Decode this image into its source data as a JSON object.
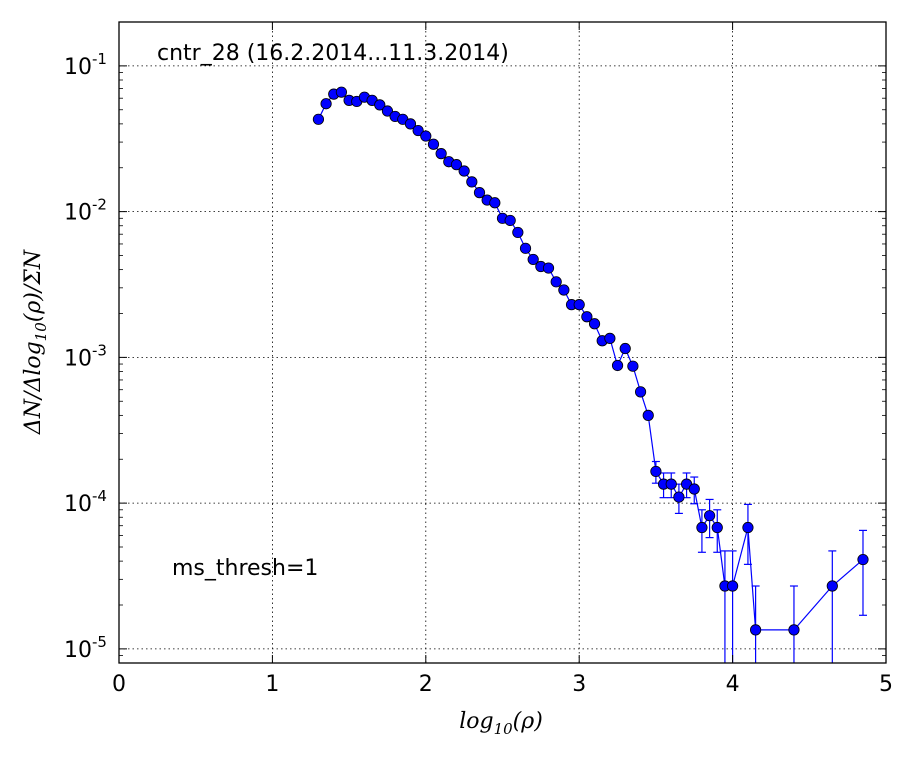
{
  "chart_data": {
    "type": "scatter",
    "title": "",
    "xlabel": "log10(ρ)",
    "ylabel": "ΔN/Δlog10(ρ)/ΣN",
    "xlim": [
      0,
      5
    ],
    "ylim": [
      8e-06,
      0.2
    ],
    "yscale": "log",
    "grid": true,
    "grid_style": "dotted",
    "x_ticks": [
      0,
      1,
      2,
      3,
      4,
      5
    ],
    "x_tick_labels": [
      "0",
      "1",
      "2",
      "3",
      "4",
      "5"
    ],
    "y_ticks": [
      1e-05,
      0.0001,
      0.001,
      0.01,
      0.1
    ],
    "y_tick_labels": [
      {
        "base": "10",
        "exp": "-5"
      },
      {
        "base": "10",
        "exp": "-4"
      },
      {
        "base": "10",
        "exp": "-3"
      },
      {
        "base": "10",
        "exp": "-2"
      },
      {
        "base": "10",
        "exp": "-1"
      }
    ],
    "annotations": [
      {
        "text": "cntr_28 (16.2.2014...11.3.2014)",
        "position": "top-left"
      },
      {
        "text": "ms_thresh=1",
        "position": "lower-left"
      }
    ],
    "series": [
      {
        "color": "#0000ff",
        "marker": "circle",
        "x": [
          1.3,
          1.35,
          1.4,
          1.45,
          1.5,
          1.55,
          1.6,
          1.65,
          1.7,
          1.75,
          1.8,
          1.85,
          1.9,
          1.95,
          2.0,
          2.05,
          2.1,
          2.15,
          2.2,
          2.25,
          2.3,
          2.35,
          2.4,
          2.45,
          2.5,
          2.55,
          2.6,
          2.65,
          2.7,
          2.75,
          2.8,
          2.85,
          2.9,
          2.95,
          3.0,
          3.05,
          3.1,
          3.15,
          3.2,
          3.25,
          3.3,
          3.35,
          3.4,
          3.45,
          3.5,
          3.55,
          3.6,
          3.65,
          3.7,
          3.75,
          3.8,
          3.85,
          3.9,
          3.95,
          4.0,
          4.1,
          4.15,
          4.4,
          4.65,
          4.85
        ],
        "y": [
          0.043,
          0.055,
          0.064,
          0.066,
          0.058,
          0.057,
          0.061,
          0.058,
          0.054,
          0.049,
          0.045,
          0.043,
          0.04,
          0.036,
          0.033,
          0.029,
          0.025,
          0.022,
          0.021,
          0.019,
          0.016,
          0.0135,
          0.012,
          0.0115,
          0.009,
          0.0087,
          0.0072,
          0.0056,
          0.0047,
          0.0042,
          0.0041,
          0.0033,
          0.0029,
          0.0023,
          0.0023,
          0.0019,
          0.0017,
          0.0013,
          0.00135,
          0.00088,
          0.00115,
          0.00087,
          0.00058,
          0.0004,
          0.000165,
          0.000135,
          0.000135,
          0.00011,
          0.000135,
          0.000125,
          6.8e-05,
          8.2e-05,
          6.8e-05,
          2.7e-05,
          2.7e-05,
          6.8e-05,
          1.35e-05,
          1.35e-05,
          2.7e-05,
          4.1e-05
        ],
        "err": [
          0,
          0,
          0,
          0,
          0,
          0,
          0,
          0,
          0,
          0,
          0,
          0,
          0,
          0,
          0,
          0,
          0,
          0,
          0,
          0,
          0,
          0,
          0,
          0,
          0,
          0,
          0,
          0,
          0,
          0,
          0,
          0,
          0,
          0,
          0,
          0,
          0,
          0,
          0,
          0,
          0,
          0,
          0,
          0,
          2.8e-05,
          2.6e-05,
          2.6e-05,
          2.5e-05,
          2.6e-05,
          2.6e-05,
          2.2e-05,
          2.4e-05,
          2.2e-05,
          2e-05,
          2e-05,
          3e-05,
          1.35e-05,
          1.35e-05,
          2e-05,
          2.4e-05
        ]
      }
    ]
  }
}
